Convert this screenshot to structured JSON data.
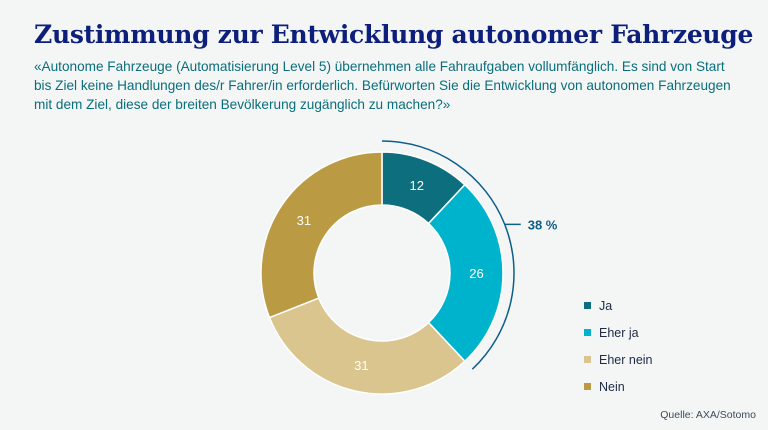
{
  "title": "Zustimmung zur Entwicklung autonomer Fahrzeuge",
  "subtitle": "«Autonome Fahrzeuge (Automatisierung Level 5) übernehmen alle Fahraufgaben vollumfänglich. Es sind von Start bis Ziel keine Handlungen des/r Fahrer/in erforderlich. Befürworten Sie die Entwicklung von autonomen Fahrzeugen mit dem Ziel, diese der breiten Bevölkerung zugänglich zu machen?»",
  "source": "Quelle: AXA/Sotomo",
  "chart_data": {
    "type": "pie",
    "variant": "donut",
    "categories": [
      "Ja",
      "Eher ja",
      "Eher nein",
      "Nein"
    ],
    "values": [
      12,
      26,
      31,
      31
    ],
    "colors": [
      "#0d6e7e",
      "#00b3cc",
      "#d9c58d",
      "#bb9a44"
    ],
    "bracket": {
      "label": "38 %",
      "covers": [
        "Ja",
        "Eher ja"
      ]
    },
    "legend_position": "right"
  },
  "colors": {
    "title": "#0d1f7a",
    "subtitle": "#0a6e7c",
    "bracket": "#0d5e8a",
    "background": "#f3f6f5"
  }
}
